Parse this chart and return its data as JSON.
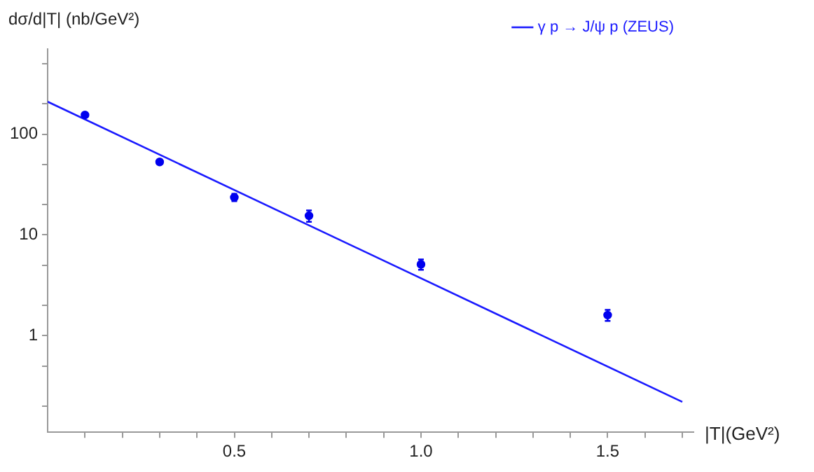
{
  "chart_data": {
    "type": "scatter",
    "xlabel": "|T|(GeV²)",
    "ylabel": "dσ/d|T| (nb/GeV²)",
    "log": "y",
    "grid": false,
    "legend": "top right",
    "marker": "circle",
    "xlim": [
      0,
      1.73
    ],
    "ylim": [
      0.11,
      700
    ],
    "xticks": [
      {
        "value": 0.1,
        "label": null
      },
      {
        "value": 0.2,
        "label": null
      },
      {
        "value": 0.3,
        "label": null
      },
      {
        "value": 0.4,
        "label": null
      },
      {
        "value": 0.5,
        "label": "0.5"
      },
      {
        "value": 0.6,
        "label": null
      },
      {
        "value": 0.7,
        "label": null
      },
      {
        "value": 0.8,
        "label": null
      },
      {
        "value": 0.9,
        "label": null
      },
      {
        "value": 1,
        "label": "1.0"
      },
      {
        "value": 1.1,
        "label": null
      },
      {
        "value": 1.2,
        "label": null
      },
      {
        "value": 1.3,
        "label": null
      },
      {
        "value": 1.4,
        "label": null
      },
      {
        "value": 1.5,
        "label": "1.5"
      },
      {
        "value": 1.6,
        "label": null
      },
      {
        "value": 1.7,
        "label": null
      }
    ],
    "yticks": [
      {
        "value": 0.2,
        "label": null
      },
      {
        "value": 0.5,
        "label": null
      },
      1,
      {
        "value": 2,
        "label": null
      },
      {
        "value": 5,
        "label": null
      },
      10,
      {
        "value": 20,
        "label": null
      },
      {
        "value": 50,
        "label": null
      },
      100,
      {
        "value": 200,
        "label": null
      },
      {
        "value": 500,
        "label": null
      }
    ],
    "series": [
      {
        "color": "#0000ee",
        "x": [
          0.1,
          0.3,
          0.5,
          0.7,
          1.0,
          1.5
        ],
        "values": [
          155,
          53,
          23.6,
          15.5,
          5.1,
          1.6
        ],
        "errors": [
          null,
          null,
          2,
          2,
          0.6,
          0.2
        ]
      },
      {
        "type": "line",
        "name": "γ p → J/ψ p (ZEUS)",
        "color": "#1a1aff",
        "x": [
          0,
          1.7
        ],
        "values": [
          210,
          0.22
        ],
        "marker": "none"
      }
    ]
  }
}
